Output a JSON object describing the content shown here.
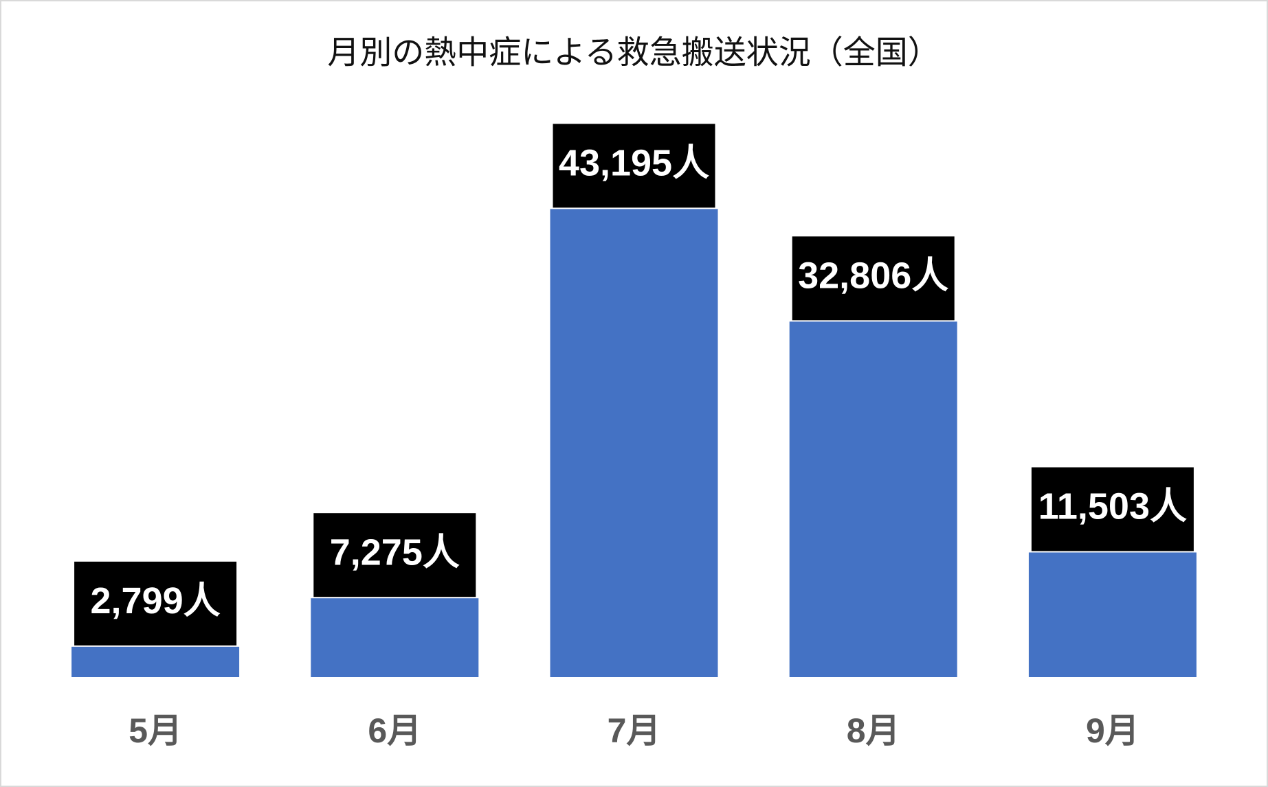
{
  "chart_data": {
    "type": "bar",
    "title": "月別の熱中症による救急搬送状況（全国）",
    "categories": [
      "5月",
      "6月",
      "7月",
      "8月",
      "9月"
    ],
    "values": [
      2799,
      7275,
      43195,
      32806,
      11503
    ],
    "value_labels": [
      "2,799人",
      "7,275人",
      "43,195人",
      "32,806人",
      "11,503人"
    ],
    "color": "#4472c4",
    "ylim": [
      0,
      50000
    ]
  }
}
